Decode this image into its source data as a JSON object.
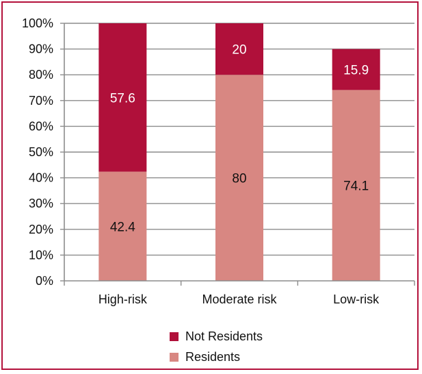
{
  "colors": {
    "not_residents": "#b0103a",
    "residents": "#d88782",
    "grid": "#8c8c8c",
    "frame": "#b3103a",
    "label_on_dark": "#ffffff",
    "label_on_light": "#111111"
  },
  "legend": {
    "not_residents": "Not Residents",
    "residents": "Residents"
  },
  "chart_data": {
    "type": "bar",
    "stacked": true,
    "categories": [
      "High-risk",
      "Moderate risk",
      "Low-risk"
    ],
    "series": [
      {
        "name": "Residents",
        "values": [
          42.4,
          80,
          74.1
        ],
        "labels": [
          "42.4",
          "80",
          "74.1"
        ]
      },
      {
        "name": "Not Residents",
        "values": [
          57.6,
          20,
          15.9
        ],
        "labels": [
          "57.6",
          "20",
          "15.9"
        ]
      }
    ],
    "ylim": [
      0,
      100
    ],
    "yticks": [
      "0%",
      "10%",
      "20%",
      "30%",
      "40%",
      "50%",
      "60%",
      "70%",
      "80%",
      "90%",
      "100%"
    ],
    "grid": true,
    "legend_position": "bottom"
  }
}
